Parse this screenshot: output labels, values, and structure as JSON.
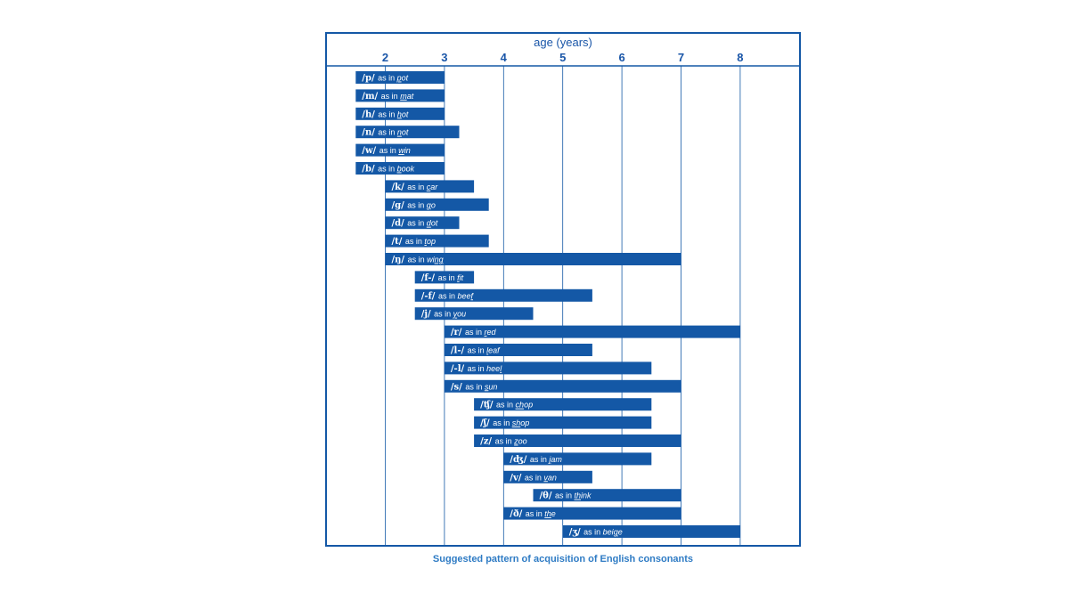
{
  "chart_data": {
    "type": "bar",
    "subtype": "range-gantt",
    "xlabel": "age (years)",
    "x_ticks": [
      2,
      3,
      4,
      5,
      6,
      7,
      8
    ],
    "xlim": [
      1,
      9
    ],
    "grid": "vertical",
    "bar_color": "#1458a6",
    "frame_color": "#1458a6",
    "connector": "as in",
    "caption": "Suggested pattern of acquisition of English consonants",
    "bars": [
      {
        "sound": "/p/",
        "pre": "",
        "ul": "p",
        "post": "ot",
        "start": 1.5,
        "end": 3.0
      },
      {
        "sound": "/m/",
        "pre": "",
        "ul": "m",
        "post": "at",
        "start": 1.5,
        "end": 3.0
      },
      {
        "sound": "/h/",
        "pre": "",
        "ul": "h",
        "post": "ot",
        "start": 1.5,
        "end": 3.0
      },
      {
        "sound": "/n/",
        "pre": "",
        "ul": "n",
        "post": "ot",
        "start": 1.5,
        "end": 3.25
      },
      {
        "sound": "/w/",
        "pre": "",
        "ul": "w",
        "post": "in",
        "start": 1.5,
        "end": 3.0
      },
      {
        "sound": "/b/",
        "pre": "",
        "ul": "b",
        "post": "ook",
        "start": 1.5,
        "end": 3.0
      },
      {
        "sound": "/k/",
        "pre": "",
        "ul": "c",
        "post": "ar",
        "start": 2.0,
        "end": 3.5
      },
      {
        "sound": "/g/",
        "pre": "",
        "ul": "g",
        "post": "o",
        "start": 2.0,
        "end": 3.75
      },
      {
        "sound": "/d/",
        "pre": "",
        "ul": "d",
        "post": "ot",
        "start": 2.0,
        "end": 3.25
      },
      {
        "sound": "/t/",
        "pre": "",
        "ul": "t",
        "post": "op",
        "start": 2.0,
        "end": 3.75
      },
      {
        "sound": "/ŋ/",
        "pre": "wi",
        "ul": "ng",
        "post": "",
        "start": 2.0,
        "end": 7.0
      },
      {
        "sound": "/f-/",
        "pre": "",
        "ul": "f",
        "post": "it",
        "start": 2.5,
        "end": 3.5
      },
      {
        "sound": "/-f/",
        "pre": "bee",
        "ul": "f",
        "post": "",
        "start": 2.5,
        "end": 5.5
      },
      {
        "sound": "/j/",
        "pre": "",
        "ul": "y",
        "post": "ou",
        "start": 2.5,
        "end": 4.5
      },
      {
        "sound": "/r/",
        "pre": "",
        "ul": "r",
        "post": "ed",
        "start": 3.0,
        "end": 8.0
      },
      {
        "sound": "/l-/",
        "pre": "",
        "ul": "l",
        "post": "eaf",
        "start": 3.0,
        "end": 5.5
      },
      {
        "sound": "/-l/",
        "pre": "hee",
        "ul": "l",
        "post": "",
        "start": 3.0,
        "end": 6.5
      },
      {
        "sound": "/s/",
        "pre": "",
        "ul": "s",
        "post": "un",
        "start": 3.0,
        "end": 7.0
      },
      {
        "sound": "/ʧ/",
        "pre": "",
        "ul": "ch",
        "post": "op",
        "start": 3.5,
        "end": 6.5
      },
      {
        "sound": "/ʃ/",
        "pre": "",
        "ul": "sh",
        "post": "op",
        "start": 3.5,
        "end": 6.5
      },
      {
        "sound": "/z/",
        "pre": "",
        "ul": "z",
        "post": "oo",
        "start": 3.5,
        "end": 7.0
      },
      {
        "sound": "/ʤ/",
        "pre": "",
        "ul": "j",
        "post": "am",
        "start": 4.0,
        "end": 6.5
      },
      {
        "sound": "/v/",
        "pre": "",
        "ul": "v",
        "post": "an",
        "start": 4.0,
        "end": 5.5
      },
      {
        "sound": "/θ/",
        "pre": "",
        "ul": "th",
        "post": "ink",
        "start": 4.5,
        "end": 7.0
      },
      {
        "sound": "/ð/",
        "pre": "",
        "ul": "th",
        "post": "e",
        "start": 4.0,
        "end": 7.0
      },
      {
        "sound": "/ʒ/",
        "pre": "bei",
        "ul": "g",
        "post": "e",
        "start": 5.0,
        "end": 8.0
      }
    ]
  }
}
